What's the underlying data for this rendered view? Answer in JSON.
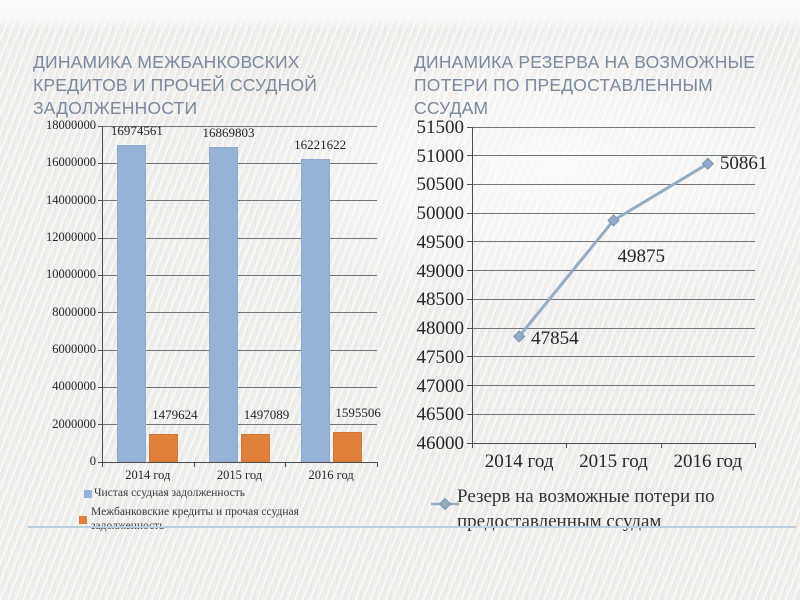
{
  "slide": {
    "title_color": "#7889a0",
    "divider_color": "#b9cede",
    "background_color": "#efeeec"
  },
  "chart_data": [
    {
      "type": "bar",
      "title": "ДИНАМИКА МЕЖБАНКОВСКИХ КРЕДИТОВ И ПРОЧЕЙ ССУДНОЙ ЗАДОЛЖЕННОСТИ",
      "categories": [
        "2014 год",
        "2015 год",
        "2016 год"
      ],
      "series": [
        {
          "name": "Чистая ссудная задолженность",
          "color": "#95b3d7",
          "values": [
            16974561,
            16869803,
            16221622
          ]
        },
        {
          "name": "Межбанковские кредиты и прочая ссудная задолженность",
          "color": "#e0803d",
          "values": [
            1479624,
            1497089,
            1595506
          ]
        }
      ],
      "ylim": [
        0,
        18000000
      ],
      "ytick_step": 2000000,
      "ytick_labels": [
        "0",
        "2000000",
        "4000000",
        "6000000",
        "8000000",
        "10000000",
        "12000000",
        "14000000",
        "16000000",
        "18000000"
      ],
      "grid": true,
      "legend_position": "bottom-left",
      "data_labels": true
    },
    {
      "type": "line",
      "title": "ДИНАМИКА РЕЗЕРВА НА ВОЗМОЖНЫЕ ПОТЕРИ ПО ПРЕДОСТАВЛЕННЫМ ССУДАМ",
      "categories": [
        "2014 год",
        "2015 год",
        "2016 год"
      ],
      "series": [
        {
          "name": "Резерв на возможные потери по предоставленным ссудам",
          "color": "#91adc8",
          "marker": "diamond",
          "marker_color": "#8fabc7",
          "marker_border": "#7b96b3",
          "values": [
            47854,
            49875,
            50861
          ]
        }
      ],
      "ylim": [
        46000,
        51500
      ],
      "ytick_step": 500,
      "ytick_labels": [
        "46000",
        "46500",
        "47000",
        "47500",
        "48000",
        "48500",
        "49000",
        "49500",
        "50000",
        "50500",
        "51000",
        "51500"
      ],
      "grid": true,
      "legend_position": "bottom",
      "data_labels": true
    }
  ]
}
